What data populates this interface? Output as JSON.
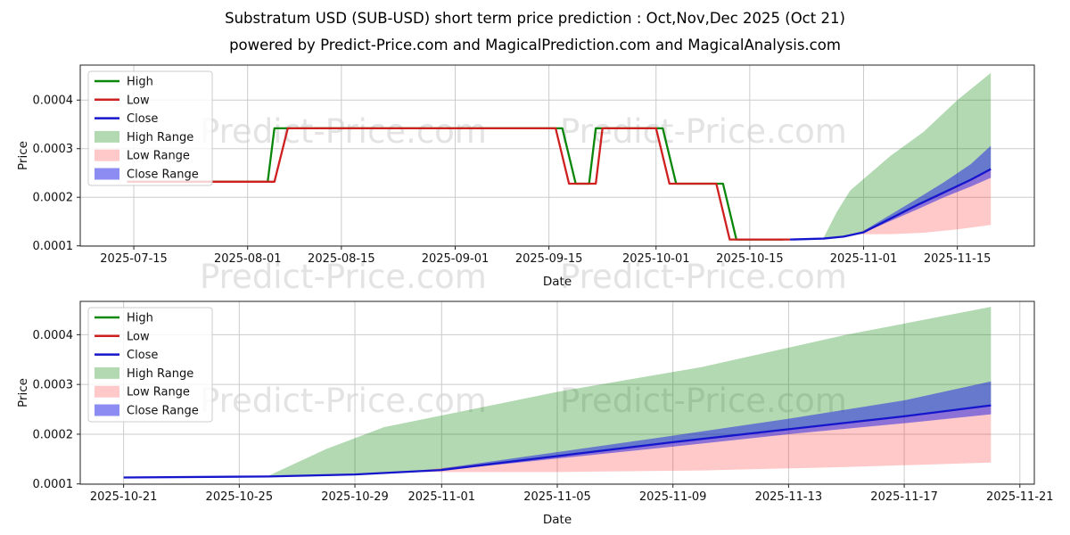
{
  "header": {
    "title": "Substratum USD (SUB-USD) short term price prediction : Oct,Nov,Dec 2025 (Oct 21)",
    "subtitle": "powered by Predict-Price.com and MagicalPrediction.com and MagicalAnalysis.com"
  },
  "watermark": {
    "text": "Predict-Price.com"
  },
  "colors": {
    "high": "#0a870a",
    "low": "#cf2020",
    "close": "#1515cc",
    "high_range": "rgba(0,128,0,0.30)",
    "low_range": "rgba(255,30,30,0.24)",
    "close_range": "rgba(25,25,230,0.50)",
    "grid": "#cbcbcb",
    "spine": "#222222",
    "text": "#111111",
    "legend_border": "#cccccc"
  },
  "legend": {
    "items": [
      {
        "label": "High",
        "swatch": "line",
        "color_key": "high"
      },
      {
        "label": "Low",
        "swatch": "line",
        "color_key": "low"
      },
      {
        "label": "Close",
        "swatch": "line",
        "color_key": "close"
      },
      {
        "label": "High Range",
        "swatch": "patch",
        "color_key": "high_range"
      },
      {
        "label": "Low Range",
        "swatch": "patch",
        "color_key": "low_range"
      },
      {
        "label": "Close Range",
        "swatch": "patch",
        "color_key": "close_range"
      }
    ]
  },
  "chart_data": [
    {
      "type": "line",
      "name": "full-history-and-prediction",
      "xlabel": "Date",
      "ylabel": "Price",
      "grid": true,
      "legend_position": "upper left",
      "x_range": [
        "2025-07-07T00:00:00Z",
        "2025-11-26T12:00:00Z"
      ],
      "y_range": [
        9.95e-05,
        0.000472
      ],
      "x_ticks": [
        "2025-07-15",
        "2025-08-01",
        "2025-08-15",
        "2025-09-01",
        "2025-09-15",
        "2025-10-01",
        "2025-10-15",
        "2025-11-01",
        "2025-11-15"
      ],
      "y_ticks": [
        0.0001,
        0.0002,
        0.0003,
        0.0004
      ],
      "y_tick_labels": [
        "0.0001",
        "0.0002",
        "0.0003",
        "0.0004"
      ],
      "series": [
        {
          "name": "High Range",
          "kind": "band",
          "color_key": "high_range",
          "upper": [
            [
              "2025-10-26",
              0.000116
            ],
            [
              "2025-10-28",
              0.00017
            ],
            [
              "2025-10-30",
              0.000214
            ],
            [
              "2025-11-05",
              0.000285
            ],
            [
              "2025-11-10",
              0.000335
            ],
            [
              "2025-11-15",
              0.0004
            ],
            [
              "2025-11-20",
              0.000456
            ]
          ],
          "lower": [
            [
              "2025-10-26",
              0.000115
            ],
            [
              "2025-10-29",
              0.000119
            ],
            [
              "2025-11-01",
              0.000128
            ],
            [
              "2025-11-05",
              0.000156
            ],
            [
              "2025-11-09",
              0.000184
            ],
            [
              "2025-11-13",
              0.00021
            ],
            [
              "2025-11-17",
              0.000236
            ],
            [
              "2025-11-20",
              0.000258
            ]
          ]
        },
        {
          "name": "Low Range",
          "kind": "band",
          "color_key": "low_range",
          "upper": [
            [
              "2025-10-31",
              0.000126
            ],
            [
              "2025-11-05",
              0.000156
            ],
            [
              "2025-11-09",
              0.000184
            ],
            [
              "2025-11-13",
              0.00021
            ],
            [
              "2025-11-17",
              0.000236
            ],
            [
              "2025-11-20",
              0.000258
            ]
          ],
          "lower": [
            [
              "2025-10-31",
              0.000124
            ],
            [
              "2025-11-05",
              0.000124
            ],
            [
              "2025-11-10",
              0.000127
            ],
            [
              "2025-11-15",
              0.000134
            ],
            [
              "2025-11-20",
              0.000143
            ]
          ]
        },
        {
          "name": "Close Range",
          "kind": "band",
          "color_key": "close_range",
          "upper": [
            [
              "2025-11-01",
              0.000131
            ],
            [
              "2025-11-05",
              0.000164
            ],
            [
              "2025-11-09",
              0.000197
            ],
            [
              "2025-11-13",
              0.000231
            ],
            [
              "2025-11-17",
              0.000268
            ],
            [
              "2025-11-20",
              0.000306
            ]
          ],
          "lower": [
            [
              "2025-11-01",
              0.000127
            ],
            [
              "2025-11-05",
              0.000151
            ],
            [
              "2025-11-09",
              0.000175
            ],
            [
              "2025-11-13",
              0.0002
            ],
            [
              "2025-11-17",
              0.000222
            ],
            [
              "2025-11-20",
              0.00024
            ]
          ]
        },
        {
          "name": "High",
          "kind": "line",
          "color_key": "high",
          "points": [
            [
              "2025-07-14",
              0.000232
            ],
            [
              "2025-08-04",
              0.000232
            ],
            [
              "2025-08-05",
              0.000342
            ],
            [
              "2025-09-17",
              0.000342
            ],
            [
              "2025-09-19",
              0.000228
            ],
            [
              "2025-09-21",
              0.000228
            ],
            [
              "2025-09-22",
              0.000342
            ],
            [
              "2025-10-02",
              0.000342
            ],
            [
              "2025-10-04",
              0.000228
            ],
            [
              "2025-10-11",
              0.000228
            ],
            [
              "2025-10-13",
              0.000113
            ],
            [
              "2025-10-20",
              0.000113
            ]
          ]
        },
        {
          "name": "Low",
          "kind": "line",
          "color_key": "low",
          "points": [
            [
              "2025-07-14",
              0.000232
            ],
            [
              "2025-08-05",
              0.000232
            ],
            [
              "2025-08-07",
              0.000342
            ],
            [
              "2025-09-16",
              0.000342
            ],
            [
              "2025-09-18",
              0.000228
            ],
            [
              "2025-09-22",
              0.000228
            ],
            [
              "2025-09-23",
              0.000342
            ],
            [
              "2025-10-01",
              0.000342
            ],
            [
              "2025-10-03",
              0.000228
            ],
            [
              "2025-10-10",
              0.000228
            ],
            [
              "2025-10-12",
              0.000113
            ],
            [
              "2025-10-21",
              0.000113
            ]
          ]
        },
        {
          "name": "Close",
          "kind": "line",
          "color_key": "close",
          "points": [
            [
              "2025-10-21",
              0.000113
            ],
            [
              "2025-10-26",
              0.000115
            ],
            [
              "2025-10-29",
              0.000119
            ],
            [
              "2025-11-01",
              0.000128
            ],
            [
              "2025-11-05",
              0.000156
            ],
            [
              "2025-11-09",
              0.000184
            ],
            [
              "2025-11-13",
              0.00021
            ],
            [
              "2025-11-17",
              0.000236
            ],
            [
              "2025-11-20",
              0.000258
            ]
          ]
        }
      ]
    },
    {
      "type": "line",
      "name": "prediction-zoom",
      "xlabel": "Date",
      "ylabel": "Price",
      "grid": true,
      "legend_position": "upper left",
      "x_range": [
        "2025-10-19T12:00:00Z",
        "2025-11-21T12:00:00Z"
      ],
      "y_range": [
        9.95e-05,
        0.000467
      ],
      "x_ticks": [
        "2025-10-21",
        "2025-10-25",
        "2025-10-29",
        "2025-11-01",
        "2025-11-05",
        "2025-11-09",
        "2025-11-13",
        "2025-11-17",
        "2025-11-21"
      ],
      "y_ticks": [
        0.0001,
        0.0002,
        0.0003,
        0.0004
      ],
      "y_tick_labels": [
        "0.0001",
        "0.0002",
        "0.0003",
        "0.0004"
      ],
      "series": [
        {
          "name": "High Range",
          "kind": "band",
          "color_key": "high_range",
          "upper": [
            [
              "2025-10-26",
              0.000116
            ],
            [
              "2025-10-28",
              0.00017
            ],
            [
              "2025-10-30",
              0.000214
            ],
            [
              "2025-11-05",
              0.000285
            ],
            [
              "2025-11-10",
              0.000335
            ],
            [
              "2025-11-15",
              0.0004
            ],
            [
              "2025-11-20",
              0.000456
            ]
          ],
          "lower": [
            [
              "2025-10-26",
              0.000115
            ],
            [
              "2025-10-29",
              0.000119
            ],
            [
              "2025-11-01",
              0.000128
            ],
            [
              "2025-11-05",
              0.000156
            ],
            [
              "2025-11-09",
              0.000184
            ],
            [
              "2025-11-13",
              0.00021
            ],
            [
              "2025-11-17",
              0.000236
            ],
            [
              "2025-11-20",
              0.000258
            ]
          ]
        },
        {
          "name": "Low Range",
          "kind": "band",
          "color_key": "low_range",
          "upper": [
            [
              "2025-10-31",
              0.000126
            ],
            [
              "2025-11-05",
              0.000156
            ],
            [
              "2025-11-09",
              0.000184
            ],
            [
              "2025-11-13",
              0.00021
            ],
            [
              "2025-11-17",
              0.000236
            ],
            [
              "2025-11-20",
              0.000258
            ]
          ],
          "lower": [
            [
              "2025-10-31",
              0.000124
            ],
            [
              "2025-11-05",
              0.000124
            ],
            [
              "2025-11-10",
              0.000127
            ],
            [
              "2025-11-15",
              0.000134
            ],
            [
              "2025-11-20",
              0.000143
            ]
          ]
        },
        {
          "name": "Close Range",
          "kind": "band",
          "color_key": "close_range",
          "upper": [
            [
              "2025-11-01",
              0.000131
            ],
            [
              "2025-11-05",
              0.000164
            ],
            [
              "2025-11-09",
              0.000197
            ],
            [
              "2025-11-13",
              0.000231
            ],
            [
              "2025-11-17",
              0.000268
            ],
            [
              "2025-11-20",
              0.000306
            ]
          ],
          "lower": [
            [
              "2025-11-01",
              0.000127
            ],
            [
              "2025-11-05",
              0.000151
            ],
            [
              "2025-11-09",
              0.000175
            ],
            [
              "2025-11-13",
              0.0002
            ],
            [
              "2025-11-17",
              0.000222
            ],
            [
              "2025-11-20",
              0.00024
            ]
          ]
        },
        {
          "name": "High",
          "kind": "line",
          "color_key": "high",
          "points": []
        },
        {
          "name": "Low",
          "kind": "line",
          "color_key": "low",
          "points": []
        },
        {
          "name": "Close",
          "kind": "line",
          "color_key": "close",
          "points": [
            [
              "2025-10-21",
              0.000113
            ],
            [
              "2025-10-26",
              0.000115
            ],
            [
              "2025-10-29",
              0.000119
            ],
            [
              "2025-11-01",
              0.000128
            ],
            [
              "2025-11-05",
              0.000156
            ],
            [
              "2025-11-09",
              0.000184
            ],
            [
              "2025-11-13",
              0.00021
            ],
            [
              "2025-11-17",
              0.000236
            ],
            [
              "2025-11-20",
              0.000258
            ]
          ]
        }
      ]
    }
  ]
}
